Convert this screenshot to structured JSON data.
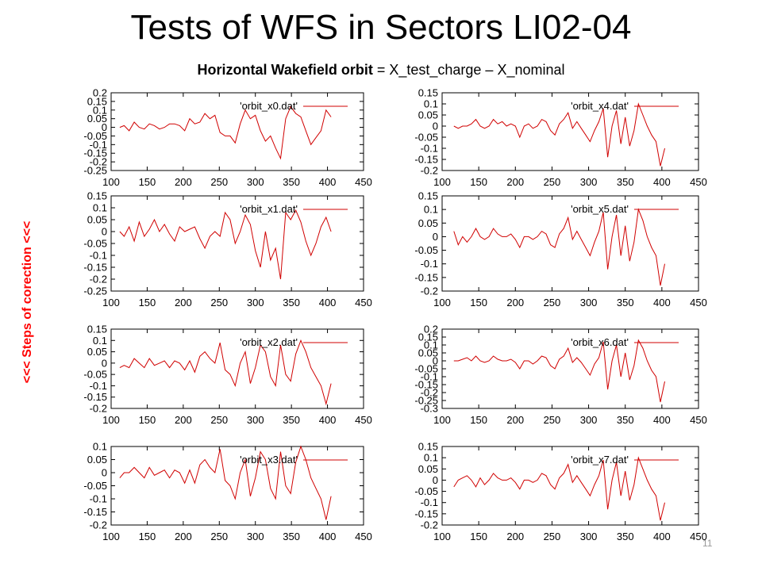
{
  "slide": {
    "title": "Tests of WFS in Sectors LI02-04",
    "subtitle_bold": "Horizontal Wakefield orbit",
    "subtitle_rest": " = X_test_charge – X_nominal",
    "side_label": "<<<  Steps of corection <<<",
    "page_number": "11"
  },
  "colors": {
    "series": "#d00000",
    "frame": "#000000",
    "side_label": "#ff0000"
  },
  "chart_data": [
    {
      "type": "line",
      "legend": "'orbit_x0.dat'",
      "xlim": [
        100,
        450
      ],
      "ylim": [
        -0.25,
        0.2
      ],
      "xticks": [
        100,
        150,
        200,
        250,
        300,
        350,
        400,
        450
      ],
      "yticks": [
        0.2,
        0.15,
        0.1,
        0.05,
        0,
        -0.05,
        -0.1,
        -0.15,
        -0.2,
        -0.25
      ],
      "x": [
        112,
        118,
        125,
        132,
        139,
        146,
        153,
        160,
        167,
        174,
        181,
        188,
        195,
        202,
        209,
        216,
        223,
        230,
        237,
        244,
        251,
        258,
        265,
        272,
        279,
        286,
        293,
        300,
        307,
        314,
        321,
        328,
        335,
        342,
        349,
        356,
        363,
        370,
        377,
        384,
        391,
        398,
        405
      ],
      "y": [
        0.0,
        0.01,
        -0.02,
        0.03,
        0.0,
        -0.01,
        0.02,
        0.01,
        -0.01,
        0.0,
        0.02,
        0.02,
        0.01,
        -0.02,
        0.05,
        0.02,
        0.03,
        0.08,
        0.05,
        0.07,
        -0.03,
        -0.05,
        -0.05,
        -0.09,
        0.02,
        0.1,
        0.05,
        0.07,
        -0.02,
        -0.08,
        -0.05,
        -0.12,
        -0.18,
        0.05,
        0.12,
        0.08,
        0.06,
        -0.02,
        -0.1,
        -0.06,
        -0.02,
        0.1,
        0.06
      ]
    },
    {
      "type": "line",
      "legend": "'orbit_x4.dat'",
      "xlim": [
        100,
        450
      ],
      "ylim": [
        -0.2,
        0.15
      ],
      "xticks": [
        100,
        150,
        200,
        250,
        300,
        350,
        400,
        450
      ],
      "yticks": [
        0.15,
        0.1,
        0.05,
        0,
        -0.05,
        -0.1,
        -0.15,
        -0.2
      ],
      "x": [
        116,
        122,
        128,
        134,
        140,
        146,
        152,
        158,
        164,
        170,
        176,
        182,
        188,
        194,
        200,
        206,
        212,
        218,
        224,
        230,
        236,
        242,
        248,
        254,
        260,
        266,
        272,
        278,
        284,
        290,
        296,
        302,
        308,
        314,
        320,
        326,
        332,
        338,
        344,
        350,
        356,
        362,
        368,
        374,
        380,
        386,
        392,
        398,
        404
      ],
      "y": [
        0.0,
        -0.01,
        0.0,
        0.0,
        0.01,
        0.03,
        0.0,
        -0.01,
        0.0,
        0.03,
        0.01,
        0.02,
        0.0,
        0.01,
        0.0,
        -0.05,
        0.0,
        0.01,
        -0.01,
        0.0,
        0.03,
        0.02,
        -0.02,
        -0.04,
        0.01,
        0.03,
        0.06,
        -0.01,
        0.02,
        -0.01,
        -0.04,
        -0.07,
        -0.02,
        0.02,
        0.08,
        -0.14,
        0.0,
        0.07,
        -0.08,
        0.04,
        -0.09,
        -0.02,
        0.1,
        0.05,
        0.0,
        -0.04,
        -0.07,
        -0.18,
        -0.1
      ]
    },
    {
      "type": "line",
      "legend": "'orbit_x1.dat'",
      "xlim": [
        100,
        450
      ],
      "ylim": [
        -0.25,
        0.15
      ],
      "xticks": [
        100,
        150,
        200,
        250,
        300,
        350,
        400,
        450
      ],
      "yticks": [
        0.15,
        0.1,
        0.05,
        0,
        -0.05,
        -0.1,
        -0.15,
        -0.2,
        -0.25
      ],
      "x": [
        112,
        118,
        125,
        132,
        139,
        146,
        153,
        160,
        167,
        174,
        181,
        188,
        195,
        202,
        209,
        216,
        223,
        230,
        237,
        244,
        251,
        258,
        265,
        272,
        279,
        286,
        293,
        300,
        307,
        314,
        321,
        328,
        335,
        342,
        349,
        356,
        363,
        370,
        377,
        384,
        391,
        398,
        405
      ],
      "y": [
        0.0,
        -0.02,
        0.02,
        -0.04,
        0.04,
        -0.02,
        0.01,
        0.05,
        0.0,
        0.03,
        -0.01,
        -0.04,
        0.02,
        0.0,
        0.01,
        0.02,
        -0.03,
        -0.07,
        -0.02,
        0.0,
        -0.02,
        0.08,
        0.05,
        -0.05,
        0.0,
        0.07,
        0.03,
        -0.08,
        -0.15,
        0.0,
        -0.12,
        -0.07,
        -0.2,
        0.08,
        0.05,
        0.09,
        0.04,
        -0.04,
        -0.1,
        -0.05,
        0.02,
        0.06,
        0.0
      ]
    },
    {
      "type": "line",
      "legend": "'orbit_x5.dat'",
      "xlim": [
        100,
        450
      ],
      "ylim": [
        -0.2,
        0.15
      ],
      "xticks": [
        100,
        150,
        200,
        250,
        300,
        350,
        400,
        450
      ],
      "yticks": [
        0.15,
        0.1,
        0.05,
        0,
        -0.05,
        -0.1,
        -0.15,
        -0.2
      ],
      "x": [
        116,
        122,
        128,
        134,
        140,
        146,
        152,
        158,
        164,
        170,
        176,
        182,
        188,
        194,
        200,
        206,
        212,
        218,
        224,
        230,
        236,
        242,
        248,
        254,
        260,
        266,
        272,
        278,
        284,
        290,
        296,
        302,
        308,
        314,
        320,
        326,
        332,
        338,
        344,
        350,
        356,
        362,
        368,
        374,
        380,
        386,
        392,
        398,
        404
      ],
      "y": [
        0.02,
        -0.03,
        0.0,
        -0.02,
        0.0,
        0.03,
        0.0,
        -0.01,
        0.0,
        0.03,
        0.01,
        0.0,
        0.0,
        0.01,
        -0.01,
        -0.04,
        0.0,
        0.0,
        -0.01,
        0.0,
        0.02,
        0.01,
        -0.03,
        -0.04,
        0.01,
        0.03,
        0.07,
        -0.01,
        0.02,
        -0.01,
        -0.04,
        -0.07,
        -0.02,
        0.02,
        0.09,
        -0.12,
        0.0,
        0.08,
        -0.07,
        0.04,
        -0.09,
        -0.02,
        0.1,
        0.06,
        0.0,
        -0.04,
        -0.07,
        -0.18,
        -0.1
      ]
    },
    {
      "type": "line",
      "legend": "'orbit_x2.dat'",
      "xlim": [
        100,
        450
      ],
      "ylim": [
        -0.2,
        0.15
      ],
      "xticks": [
        100,
        150,
        200,
        250,
        300,
        350,
        400,
        450
      ],
      "yticks": [
        0.15,
        0.1,
        0.05,
        0,
        -0.05,
        -0.1,
        -0.15,
        -0.2
      ],
      "x": [
        112,
        118,
        125,
        132,
        139,
        146,
        153,
        160,
        167,
        174,
        181,
        188,
        195,
        202,
        209,
        216,
        223,
        230,
        237,
        244,
        251,
        258,
        265,
        272,
        279,
        286,
        293,
        300,
        307,
        314,
        321,
        328,
        335,
        342,
        349,
        356,
        363,
        370,
        377,
        384,
        391,
        398,
        405
      ],
      "y": [
        -0.02,
        -0.01,
        -0.02,
        0.02,
        0.0,
        -0.02,
        0.02,
        -0.01,
        0.0,
        0.01,
        -0.02,
        0.01,
        0.0,
        -0.03,
        0.01,
        -0.04,
        0.03,
        0.05,
        0.02,
        0.0,
        0.09,
        -0.03,
        -0.05,
        -0.1,
        0.0,
        0.05,
        -0.09,
        -0.02,
        0.08,
        0.05,
        -0.06,
        -0.1,
        0.08,
        -0.05,
        -0.08,
        0.04,
        0.1,
        0.05,
        -0.02,
        -0.06,
        -0.1,
        -0.18,
        -0.09
      ]
    },
    {
      "type": "line",
      "legend": "'orbit_x6.dat'",
      "xlim": [
        100,
        450
      ],
      "ylim": [
        -0.3,
        0.2
      ],
      "xticks": [
        100,
        150,
        200,
        250,
        300,
        350,
        400,
        450
      ],
      "yticks": [
        0.2,
        0.15,
        0.1,
        0.05,
        0,
        -0.05,
        -0.1,
        -0.15,
        -0.2,
        -0.25,
        -0.3
      ],
      "x": [
        116,
        122,
        128,
        134,
        140,
        146,
        152,
        158,
        164,
        170,
        176,
        182,
        188,
        194,
        200,
        206,
        212,
        218,
        224,
        230,
        236,
        242,
        248,
        254,
        260,
        266,
        272,
        278,
        284,
        290,
        296,
        302,
        308,
        314,
        320,
        326,
        332,
        338,
        344,
        350,
        356,
        362,
        368,
        374,
        380,
        386,
        392,
        398,
        404
      ],
      "y": [
        0.0,
        0.0,
        0.01,
        0.02,
        0.0,
        0.03,
        0.0,
        -0.01,
        0.0,
        0.03,
        0.01,
        0.0,
        0.0,
        0.01,
        -0.01,
        -0.05,
        0.0,
        0.0,
        -0.02,
        0.0,
        0.03,
        0.02,
        -0.03,
        -0.05,
        0.01,
        0.03,
        0.08,
        -0.01,
        0.02,
        -0.01,
        -0.05,
        -0.09,
        -0.02,
        0.02,
        0.12,
        -0.18,
        0.0,
        0.1,
        -0.1,
        0.05,
        -0.12,
        -0.03,
        0.13,
        0.08,
        0.0,
        -0.06,
        -0.1,
        -0.26,
        -0.13
      ]
    },
    {
      "type": "line",
      "legend": "'orbit_x3.dat'",
      "xlim": [
        100,
        450
      ],
      "ylim": [
        -0.2,
        0.1
      ],
      "xticks": [
        100,
        150,
        200,
        250,
        300,
        350,
        400,
        450
      ],
      "yticks": [
        0.1,
        0.05,
        0,
        -0.05,
        -0.1,
        -0.15,
        -0.2
      ],
      "x": [
        112,
        118,
        125,
        132,
        139,
        146,
        153,
        160,
        167,
        174,
        181,
        188,
        195,
        202,
        209,
        216,
        223,
        230,
        237,
        244,
        251,
        258,
        265,
        272,
        279,
        286,
        293,
        300,
        307,
        314,
        321,
        328,
        335,
        342,
        349,
        356,
        363,
        370,
        377,
        384,
        391,
        398,
        405
      ],
      "y": [
        -0.02,
        0.0,
        0.0,
        0.02,
        0.0,
        -0.02,
        0.02,
        -0.01,
        0.0,
        0.01,
        -0.02,
        0.01,
        0.0,
        -0.04,
        0.01,
        -0.04,
        0.03,
        0.05,
        0.02,
        0.0,
        0.09,
        -0.03,
        -0.05,
        -0.1,
        0.0,
        0.05,
        -0.09,
        -0.02,
        0.08,
        0.05,
        -0.06,
        -0.1,
        0.08,
        -0.05,
        -0.08,
        0.04,
        0.1,
        0.05,
        -0.02,
        -0.06,
        -0.1,
        -0.18,
        -0.09
      ]
    },
    {
      "type": "line",
      "legend": "'orbit_x7.dat'",
      "xlim": [
        100,
        450
      ],
      "ylim": [
        -0.2,
        0.15
      ],
      "xticks": [
        100,
        150,
        200,
        250,
        300,
        350,
        400,
        450
      ],
      "yticks": [
        0.15,
        0.1,
        0.05,
        0,
        -0.05,
        -0.1,
        -0.15,
        -0.2
      ],
      "x": [
        116,
        122,
        128,
        134,
        140,
        146,
        152,
        158,
        164,
        170,
        176,
        182,
        188,
        194,
        200,
        206,
        212,
        218,
        224,
        230,
        236,
        242,
        248,
        254,
        260,
        266,
        272,
        278,
        284,
        290,
        296,
        302,
        308,
        314,
        320,
        326,
        332,
        338,
        344,
        350,
        356,
        362,
        368,
        374,
        380,
        386,
        392,
        398,
        404
      ],
      "y": [
        -0.03,
        0.0,
        0.01,
        0.02,
        0.0,
        -0.03,
        0.01,
        -0.02,
        0.0,
        0.03,
        0.01,
        0.0,
        0.0,
        0.01,
        -0.01,
        -0.04,
        0.0,
        0.0,
        -0.01,
        0.0,
        0.03,
        0.02,
        -0.02,
        -0.04,
        0.01,
        0.03,
        0.07,
        -0.01,
        0.02,
        -0.01,
        -0.04,
        -0.07,
        -0.02,
        0.02,
        0.09,
        -0.13,
        0.0,
        0.08,
        -0.07,
        0.04,
        -0.09,
        -0.02,
        0.1,
        0.05,
        0.0,
        -0.04,
        -0.07,
        -0.18,
        -0.1
      ]
    }
  ]
}
